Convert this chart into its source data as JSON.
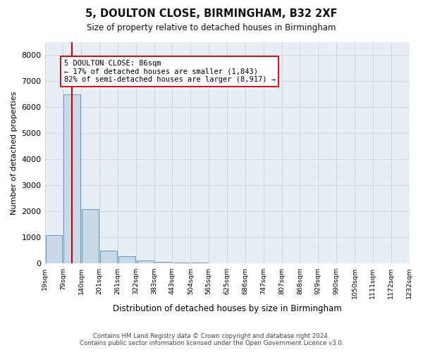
{
  "title": "5, DOULTON CLOSE, BIRMINGHAM, B32 2XF",
  "subtitle": "Size of property relative to detached houses in Birmingham",
  "xlabel": "Distribution of detached houses by size in Birmingham",
  "ylabel": "Number of detached properties",
  "footer_line1": "Contains HM Land Registry data © Crown copyright and database right 2024.",
  "footer_line2": "Contains public sector information licensed under the Open Government Licence v3.0.",
  "bin_labels": [
    "19sqm",
    "79sqm",
    "140sqm",
    "201sqm",
    "261sqm",
    "322sqm",
    "383sqm",
    "443sqm",
    "504sqm",
    "565sqm",
    "625sqm",
    "686sqm",
    "747sqm",
    "807sqm",
    "868sqm",
    "929sqm",
    "990sqm",
    "1050sqm",
    "1111sqm",
    "1172sqm",
    "1232sqm"
  ],
  "bar_values": [
    1100,
    6500,
    2100,
    500,
    280,
    120,
    70,
    40,
    30,
    15,
    0,
    0,
    0,
    0,
    0,
    0,
    0,
    0,
    0,
    0
  ],
  "bar_color": "#c9d9e8",
  "bar_edge_color": "#6b9abb",
  "ylim_max": 8500,
  "yticks": [
    0,
    1000,
    2000,
    3000,
    4000,
    5000,
    6000,
    7000,
    8000
  ],
  "property_bin_index": 1,
  "red_line_color": "#cc0000",
  "annotation_title": "5 DOULTON CLOSE: 86sqm",
  "annotation_line1": "← 17% of detached houses are smaller (1,843)",
  "annotation_line2": "82% of semi-detached houses are larger (8,917) →",
  "grid_color": "#cdd6e4",
  "background_color": "#e8eef5"
}
